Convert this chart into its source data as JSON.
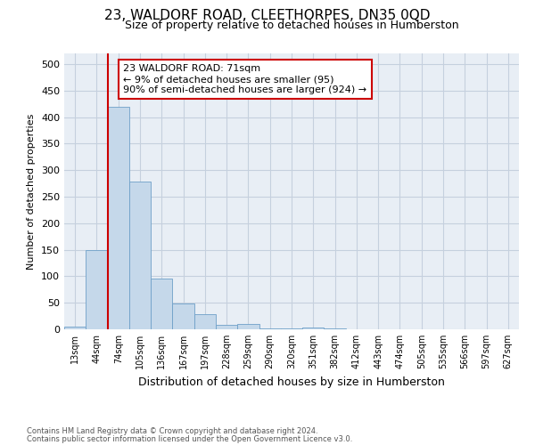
{
  "title": "23, WALDORF ROAD, CLEETHORPES, DN35 0QD",
  "subtitle": "Size of property relative to detached houses in Humberston",
  "xlabel": "Distribution of detached houses by size in Humberston",
  "ylabel": "Number of detached properties",
  "footnote1": "Contains HM Land Registry data © Crown copyright and database right 2024.",
  "footnote2": "Contains public sector information licensed under the Open Government Licence v3.0.",
  "bar_labels": [
    "13sqm",
    "44sqm",
    "74sqm",
    "105sqm",
    "136sqm",
    "167sqm",
    "197sqm",
    "228sqm",
    "259sqm",
    "290sqm",
    "320sqm",
    "351sqm",
    "382sqm",
    "412sqm",
    "443sqm",
    "474sqm",
    "505sqm",
    "535sqm",
    "566sqm",
    "597sqm",
    "627sqm"
  ],
  "bar_values": [
    5,
    150,
    420,
    278,
    95,
    48,
    28,
    8,
    10,
    2,
    2,
    3,
    2,
    0,
    0,
    0,
    0,
    0,
    0,
    0,
    0
  ],
  "bar_color": "#c5d8ea",
  "bar_edge_color": "#6ea0c8",
  "red_line_bar_index": 2,
  "ylim": [
    0,
    520
  ],
  "yticks": [
    0,
    50,
    100,
    150,
    200,
    250,
    300,
    350,
    400,
    450,
    500
  ],
  "annotation_title": "23 WALDORF ROAD: 71sqm",
  "annotation_line1": "← 9% of detached houses are smaller (95)",
  "annotation_line2": "90% of semi-detached houses are larger (924) →",
  "annotation_box_facecolor": "#ffffff",
  "annotation_box_edgecolor": "#cc0000",
  "red_line_color": "#cc0000",
  "grid_color": "#c5d0de",
  "background_color": "#e8eef5"
}
